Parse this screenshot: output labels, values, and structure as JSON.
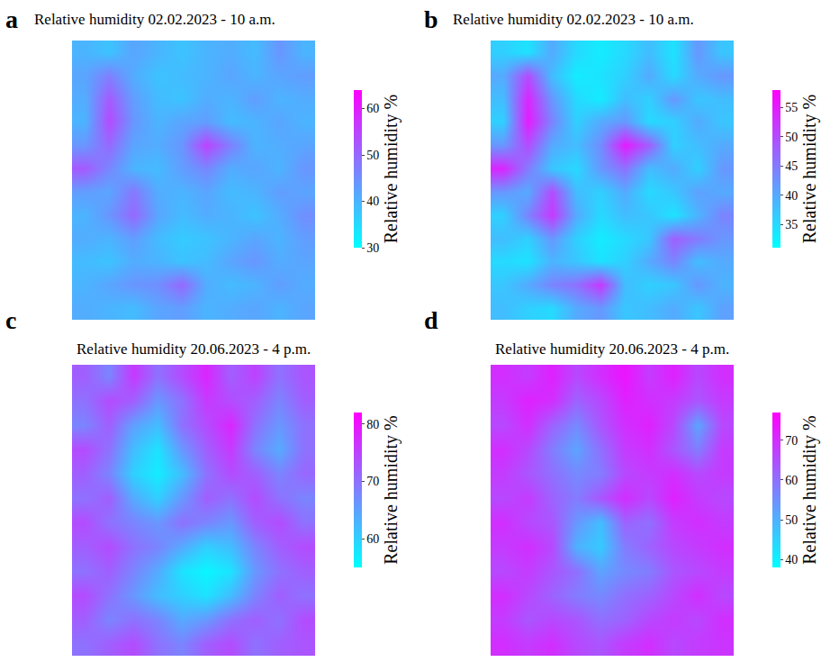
{
  "chart_data": [
    {
      "type": "heatmap",
      "panel": "a",
      "title": "Relative humidity 02.02.2023 - 10 a.m.",
      "colorbar_title": "Relative humidity %",
      "colorbar_range": [
        30,
        64
      ],
      "colorbar_ticks": [
        30,
        40,
        50,
        60
      ],
      "tick_labels": false,
      "z": [
        [
          40,
          38,
          42,
          40,
          38,
          40,
          41,
          39,
          44,
          40
        ],
        [
          42,
          47,
          41,
          38,
          39,
          40,
          42,
          40,
          42,
          43
        ],
        [
          41,
          52,
          43,
          39,
          38,
          41,
          40,
          43,
          40,
          41
        ],
        [
          40,
          54,
          44,
          40,
          42,
          43,
          39,
          40,
          42,
          40
        ],
        [
          44,
          50,
          42,
          41,
          44,
          55,
          47,
          40,
          41,
          42
        ],
        [
          52,
          46,
          40,
          39,
          43,
          46,
          41,
          42,
          40,
          44
        ],
        [
          43,
          42,
          48,
          41,
          40,
          42,
          39,
          40,
          43,
          42
        ],
        [
          40,
          44,
          50,
          42,
          39,
          41,
          40,
          38,
          41,
          45
        ],
        [
          41,
          40,
          43,
          39,
          37,
          38,
          40,
          42,
          40,
          43
        ],
        [
          39,
          38,
          41,
          40,
          38,
          39,
          42,
          44,
          41,
          42
        ],
        [
          40,
          42,
          44,
          45,
          50,
          41,
          39,
          40,
          43,
          41
        ],
        [
          41,
          40,
          39,
          42,
          43,
          40,
          41,
          42,
          40,
          42
        ]
      ]
    },
    {
      "type": "heatmap",
      "panel": "b",
      "title": "Relative humidity 02.02.2023 - 10 a.m.",
      "colorbar_title": "Relative humidity %",
      "colorbar_range": [
        31,
        58
      ],
      "colorbar_ticks": [
        35,
        40,
        45,
        50,
        55
      ],
      "tick_labels": false,
      "z": [
        [
          36,
          34,
          40,
          35,
          33,
          35,
          38,
          34,
          42,
          37
        ],
        [
          40,
          50,
          38,
          33,
          34,
          36,
          40,
          35,
          40,
          42
        ],
        [
          38,
          54,
          42,
          35,
          33,
          38,
          36,
          42,
          37,
          38
        ],
        [
          36,
          55,
          44,
          36,
          40,
          42,
          35,
          36,
          40,
          37
        ],
        [
          42,
          50,
          40,
          38,
          43,
          55,
          48,
          36,
          38,
          40
        ],
        [
          54,
          45,
          37,
          35,
          42,
          46,
          38,
          40,
          36,
          42
        ],
        [
          42,
          40,
          50,
          38,
          36,
          40,
          35,
          37,
          41,
          40
        ],
        [
          36,
          44,
          52,
          40,
          35,
          38,
          37,
          34,
          39,
          44
        ],
        [
          38,
          36,
          42,
          36,
          33,
          35,
          37,
          48,
          45,
          42
        ],
        [
          35,
          34,
          39,
          37,
          34,
          36,
          40,
          44,
          38,
          40
        ],
        [
          37,
          40,
          44,
          46,
          52,
          38,
          36,
          37,
          42,
          39
        ],
        [
          38,
          36,
          35,
          40,
          42,
          37,
          38,
          40,
          37,
          41
        ]
      ]
    },
    {
      "type": "heatmap",
      "panel": "c",
      "title": "Relative humidity 20.06.2023 - 4 p.m.",
      "colorbar_title": "Relative humidity %",
      "colorbar_range": [
        55,
        82
      ],
      "colorbar_ticks": [
        60,
        70,
        80
      ],
      "tick_labels": false,
      "z": [
        [
          72,
          68,
          76,
          70,
          74,
          78,
          72,
          75,
          70,
          73
        ],
        [
          70,
          74,
          72,
          66,
          70,
          76,
          74,
          72,
          68,
          72
        ],
        [
          68,
          72,
          65,
          62,
          70,
          74,
          78,
          70,
          66,
          70
        ],
        [
          74,
          70,
          62,
          58,
          66,
          72,
          76,
          68,
          64,
          70
        ],
        [
          72,
          68,
          60,
          57,
          62,
          70,
          74,
          72,
          68,
          71
        ],
        [
          70,
          72,
          64,
          60,
          66,
          72,
          70,
          74,
          70,
          68
        ],
        [
          74,
          70,
          68,
          66,
          70,
          68,
          66,
          72,
          74,
          70
        ],
        [
          72,
          74,
          70,
          68,
          64,
          60,
          62,
          68,
          72,
          74
        ],
        [
          70,
          72,
          68,
          64,
          58,
          56,
          58,
          66,
          70,
          72
        ],
        [
          74,
          70,
          66,
          62,
          60,
          58,
          62,
          68,
          72,
          70
        ],
        [
          72,
          68,
          70,
          68,
          64,
          66,
          70,
          72,
          70,
          74
        ],
        [
          70,
          72,
          74,
          70,
          68,
          72,
          74,
          70,
          72,
          73
        ]
      ]
    },
    {
      "type": "heatmap",
      "panel": "d",
      "title": "Relative humidity 20.06.2023 - 4 p.m.",
      "colorbar_title": "Relative humidity %",
      "colorbar_range": [
        38,
        77
      ],
      "colorbar_ticks": [
        40,
        50,
        60,
        70
      ],
      "tick_labels": false,
      "z": [
        [
          70,
          68,
          72,
          66,
          70,
          74,
          68,
          72,
          66,
          70
        ],
        [
          68,
          72,
          70,
          62,
          66,
          72,
          70,
          68,
          64,
          68
        ],
        [
          66,
          70,
          62,
          56,
          64,
          70,
          72,
          66,
          52,
          66
        ],
        [
          70,
          66,
          58,
          52,
          60,
          68,
          70,
          64,
          58,
          68
        ],
        [
          68,
          64,
          60,
          56,
          58,
          66,
          68,
          70,
          66,
          68
        ],
        [
          66,
          68,
          62,
          58,
          64,
          70,
          66,
          72,
          68,
          66
        ],
        [
          70,
          66,
          64,
          54,
          48,
          62,
          60,
          68,
          70,
          68
        ],
        [
          68,
          70,
          66,
          50,
          46,
          58,
          62,
          66,
          68,
          70
        ],
        [
          66,
          68,
          64,
          60,
          52,
          56,
          58,
          64,
          66,
          68
        ],
        [
          70,
          66,
          62,
          58,
          56,
          60,
          62,
          66,
          70,
          66
        ],
        [
          68,
          64,
          66,
          64,
          60,
          62,
          66,
          68,
          66,
          70
        ],
        [
          70,
          68,
          70,
          66,
          64,
          68,
          70,
          66,
          68,
          69
        ]
      ]
    }
  ]
}
